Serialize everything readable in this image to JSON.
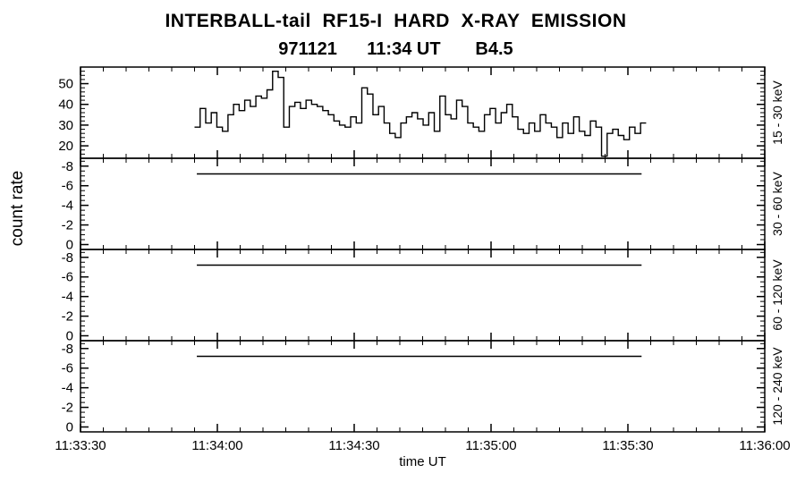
{
  "title": "INTERBALL-tail  RF15-I  HARD  X-RAY  EMISSION",
  "subtitle": "971121      11:34 UT       B4.5",
  "xlabel": "time UT",
  "ylabel": "count rate",
  "colors": {
    "foreground": "#000000",
    "background": "#ffffff"
  },
  "chart_data": {
    "type": "line",
    "style": "step-histogram",
    "title": "INTERBALL-tail RF15-I HARD X-RAY EMISSION",
    "subtitle": "971121 11:34 UT B4.5",
    "xlabel": "time UT",
    "ylabel": "count rate",
    "grid": false,
    "x_axis": {
      "tick_labels": [
        "11:33:30",
        "11:34:00",
        "11:34:30",
        "11:35:00",
        "11:35:30",
        "11:36:00"
      ],
      "tick_seconds": [
        0,
        30,
        60,
        90,
        120,
        150
      ],
      "minor_step_seconds": 5,
      "range_seconds": [
        0,
        150
      ]
    },
    "panels": [
      {
        "label": "15 - 30 keV",
        "ticks": [
          20,
          30,
          40,
          50
        ],
        "minor_step": 2,
        "ylim_bottom": 14,
        "ylim_top": 58,
        "series": {
          "type": "step",
          "x_start": 25,
          "x_end": 124,
          "values": [
            29,
            38,
            31,
            36,
            29,
            27,
            35,
            40,
            37,
            42,
            39,
            44,
            43,
            47,
            56,
            53,
            29,
            39,
            41,
            38,
            42,
            40,
            39,
            37,
            35,
            32,
            30,
            29,
            34,
            31,
            48,
            45,
            35,
            39,
            31,
            26,
            24,
            31,
            34,
            36,
            33,
            30,
            36,
            27,
            44,
            35,
            33,
            42,
            39,
            31,
            29,
            27,
            35,
            38,
            31,
            36,
            40,
            34,
            28,
            26,
            31,
            27,
            35,
            31,
            29,
            24,
            31,
            26,
            34,
            27,
            25,
            32,
            29,
            15,
            26,
            28,
            25,
            23,
            29,
            26,
            31
          ]
        }
      },
      {
        "label": "30 - 60 keV",
        "ticks": [
          0,
          -2,
          -4,
          -6,
          -8
        ],
        "minor_step": 0.5,
        "ylim_bottom": 0.5,
        "ylim_top": -8.8,
        "series": {
          "type": "flat",
          "x_start": 25.5,
          "x_end": 123,
          "value": -7.2
        }
      },
      {
        "label": "60 - 120 keV",
        "ticks": [
          0,
          -2,
          -4,
          -6,
          -8
        ],
        "minor_step": 0.5,
        "ylim_bottom": 0.5,
        "ylim_top": -8.8,
        "series": {
          "type": "flat",
          "x_start": 25.5,
          "x_end": 123,
          "value": -7.2
        }
      },
      {
        "label": "120 - 240 keV",
        "ticks": [
          0,
          -2,
          -4,
          -6,
          -8
        ],
        "minor_step": 0.5,
        "ylim_bottom": 0.5,
        "ylim_top": -8.8,
        "series": {
          "type": "flat",
          "x_start": 25.5,
          "x_end": 123,
          "value": -7.2
        }
      }
    ]
  }
}
